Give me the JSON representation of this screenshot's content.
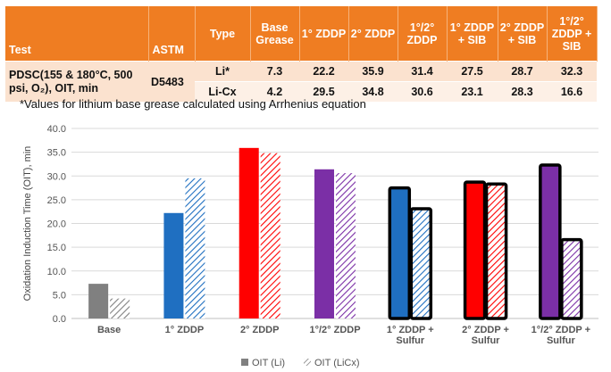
{
  "table": {
    "headers": [
      "Test",
      "ASTM",
      "Type",
      "Base Grease",
      "1° ZDDP",
      "2° ZDDP",
      "1°/2° ZDDP",
      "1° ZDDP + SIB",
      "2° ZDDP + SIB",
      "1°/2° ZDDP + SIB"
    ],
    "test_name": "PDSC(155 & 180°C, 500 psi, O₂), OIT, min",
    "astm": "D5483",
    "rows": [
      {
        "type": "Li*",
        "values": [
          "7.3",
          "22.2",
          "35.9",
          "31.4",
          "27.5",
          "28.7",
          "32.3"
        ]
      },
      {
        "type": "Li-Cx",
        "values": [
          "4.2",
          "29.5",
          "34.8",
          "30.6",
          "23.1",
          "28.3",
          "16.6"
        ]
      }
    ]
  },
  "note": "*Values for lithium base grease calculated using Arrhenius equation",
  "chart_data": {
    "type": "bar",
    "categories": [
      "Base",
      "1° ZDDP",
      "2° ZDDP",
      "1°/2° ZDDP",
      "1° ZDDP + Sulfur",
      "2° ZDDP + Sulfur",
      "1°/2° ZDDP + Sulfur"
    ],
    "category_lines": [
      [
        "Base"
      ],
      [
        "1° ZDDP"
      ],
      [
        "2° ZDDP"
      ],
      [
        "1°/2° ZDDP"
      ],
      [
        "1° ZDDP +",
        "Sulfur"
      ],
      [
        "2° ZDDP +",
        "Sulfur"
      ],
      [
        "1°/2° ZDDP +",
        "Sulfur"
      ]
    ],
    "series": [
      {
        "name": "OIT (Li)",
        "values": [
          7.3,
          22.2,
          35.9,
          31.4,
          27.5,
          28.7,
          32.3
        ]
      },
      {
        "name": "OIT (LiCx)",
        "values": [
          4.2,
          29.5,
          34.8,
          30.6,
          23.1,
          28.3,
          16.6
        ]
      }
    ],
    "colors": [
      "#808080",
      "#1f6fc1",
      "#ff0000",
      "#7b2fa6",
      "#1f6fc1",
      "#ff0000",
      "#7b2fa6"
    ],
    "outlined": [
      false,
      false,
      false,
      false,
      true,
      true,
      true
    ],
    "ylabel": "Oxidation Induction Time (OIT), min",
    "ylim": [
      0,
      40
    ],
    "yticks": [
      "0.0",
      "5.0",
      "10.0",
      "15.0",
      "20.0",
      "25.0",
      "30.0",
      "35.0",
      "40.0"
    ],
    "grid": true,
    "legend_position": "bottom"
  }
}
